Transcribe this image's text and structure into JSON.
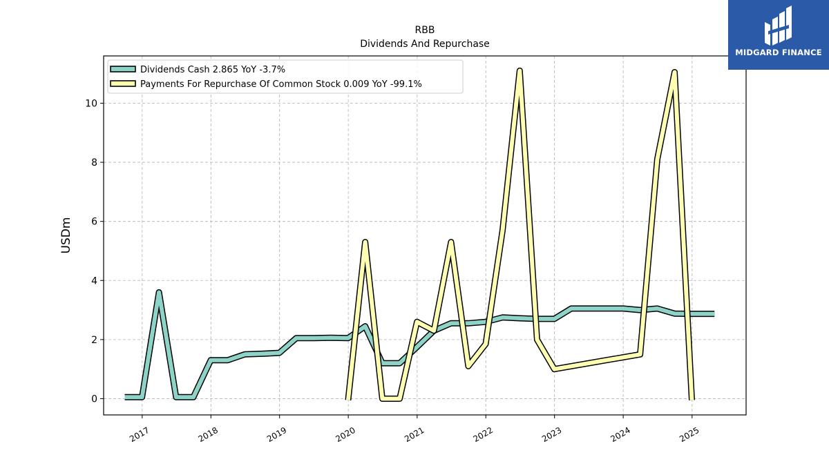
{
  "chart_data": {
    "type": "line",
    "title": "RBB",
    "subtitle": "Dividends And Repurchase",
    "ylabel": "USDm",
    "xlabel": "",
    "ylim": [
      -0.55,
      11.6
    ],
    "xlim": [
      "2016-06-10",
      "2025-10-15"
    ],
    "yticks": [
      0,
      2,
      4,
      6,
      8,
      10
    ],
    "xticks": [
      "2017",
      "2018",
      "2019",
      "2020",
      "2021",
      "2022",
      "2023",
      "2024",
      "2025"
    ],
    "grid": true,
    "legend_position": "top-left",
    "series": [
      {
        "name": "Dividends Cash  2.865 YoY -3.7%",
        "color": "#8dd3c7",
        "points": [
          [
            "2016-09-30",
            0.05
          ],
          [
            "2016-12-31",
            0.05
          ],
          [
            "2017-03-31",
            3.6
          ],
          [
            "2017-06-30",
            0.05
          ],
          [
            "2017-09-30",
            0.05
          ],
          [
            "2017-12-31",
            1.3
          ],
          [
            "2018-03-31",
            1.3
          ],
          [
            "2018-06-30",
            1.5
          ],
          [
            "2018-09-30",
            1.52
          ],
          [
            "2018-12-31",
            1.55
          ],
          [
            "2019-03-31",
            2.05
          ],
          [
            "2019-06-30",
            2.05
          ],
          [
            "2019-09-30",
            2.06
          ],
          [
            "2019-12-31",
            2.05
          ],
          [
            "2020-03-31",
            2.45
          ],
          [
            "2020-06-30",
            1.2
          ],
          [
            "2020-09-30",
            1.2
          ],
          [
            "2020-12-31",
            1.75
          ],
          [
            "2021-03-31",
            2.3
          ],
          [
            "2021-06-30",
            2.55
          ],
          [
            "2021-09-30",
            2.55
          ],
          [
            "2021-12-31",
            2.6
          ],
          [
            "2022-03-31",
            2.75
          ],
          [
            "2022-06-30",
            2.72
          ],
          [
            "2022-09-30",
            2.7
          ],
          [
            "2022-12-31",
            2.7
          ],
          [
            "2023-03-31",
            3.05
          ],
          [
            "2023-06-30",
            3.05
          ],
          [
            "2023-09-30",
            3.05
          ],
          [
            "2023-12-31",
            3.05
          ],
          [
            "2024-03-31",
            3.0
          ],
          [
            "2024-06-30",
            3.05
          ],
          [
            "2024-09-30",
            2.88
          ],
          [
            "2024-12-31",
            2.87
          ],
          [
            "2025-03-31",
            2.87
          ],
          [
            "2025-04-30",
            2.87
          ]
        ]
      },
      {
        "name": "Payments For Repurchase Of Common Stock  0.009 YoY -99.1%",
        "color": "#ffffb3",
        "points": [
          [
            "2019-12-31",
            -0.05
          ],
          [
            "2020-03-31",
            5.3
          ],
          [
            "2020-06-30",
            0.0
          ],
          [
            "2020-09-30",
            0.0
          ],
          [
            "2020-12-31",
            2.6
          ],
          [
            "2021-03-31",
            2.3
          ],
          [
            "2021-06-30",
            5.3
          ],
          [
            "2021-09-30",
            1.1
          ],
          [
            "2021-12-31",
            1.85
          ],
          [
            "2022-03-31",
            5.7
          ],
          [
            "2022-06-30",
            11.1
          ],
          [
            "2022-09-30",
            2.0
          ],
          [
            "2022-12-31",
            1.0
          ],
          [
            "2024-03-31",
            1.5
          ],
          [
            "2024-06-30",
            8.1
          ],
          [
            "2024-09-30",
            11.05
          ],
          [
            "2024-12-31",
            -0.05
          ]
        ]
      }
    ]
  },
  "logo": {
    "text": "MIDGARD FINANCE",
    "background": "#2a5aa8"
  }
}
